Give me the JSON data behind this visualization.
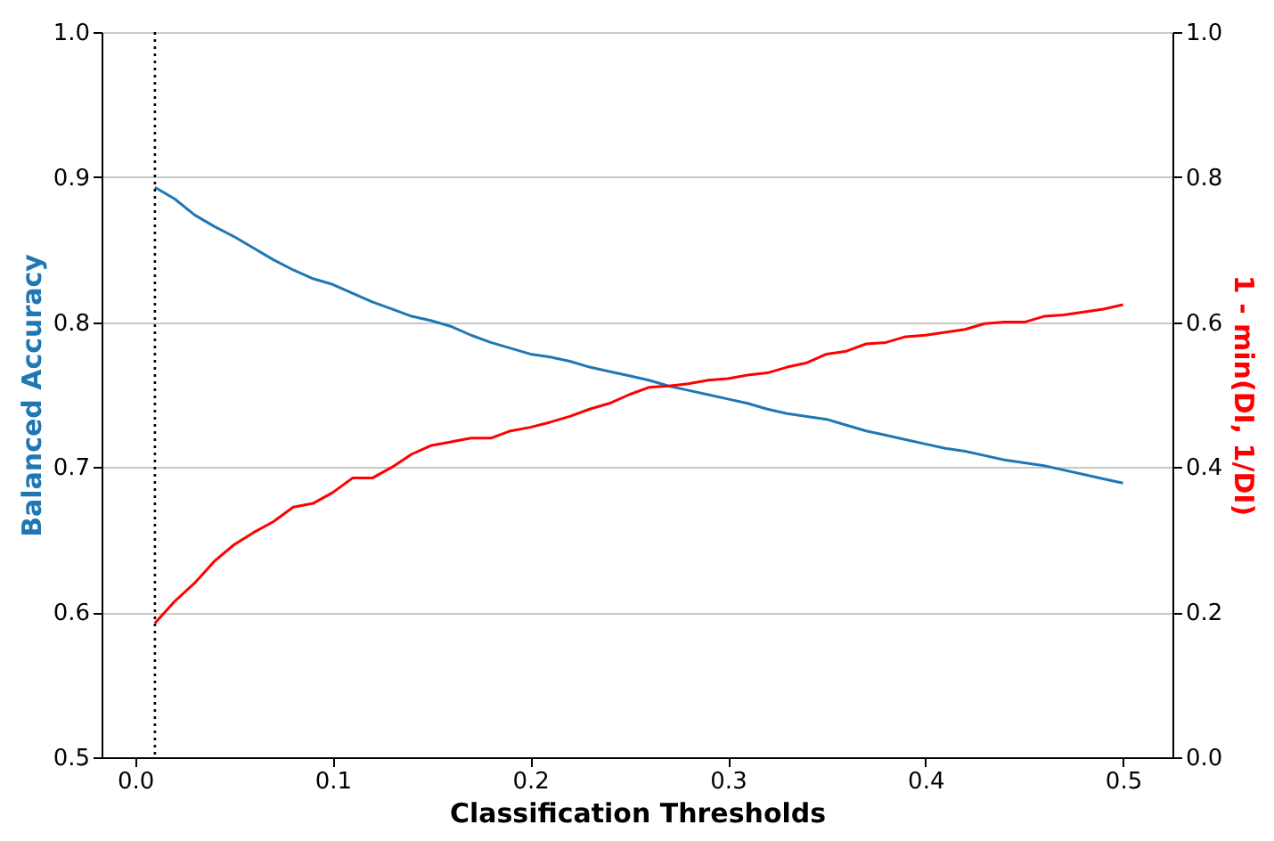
{
  "chart_data": {
    "type": "line",
    "xlabel": "Classification Thresholds",
    "ylabel": "Balanced Accuracy",
    "y2label": "1 - min(DI, 1/DI)",
    "x": [
      0.01,
      0.02,
      0.03,
      0.04,
      0.05,
      0.06,
      0.07,
      0.08,
      0.09,
      0.1,
      0.11,
      0.12,
      0.13,
      0.14,
      0.15,
      0.16,
      0.17,
      0.18,
      0.19,
      0.2,
      0.21,
      0.22,
      0.23,
      0.24,
      0.25,
      0.26,
      0.27,
      0.28,
      0.29,
      0.3,
      0.31,
      0.32,
      0.33,
      0.34,
      0.35,
      0.36,
      0.37,
      0.38,
      0.39,
      0.4,
      0.41,
      0.42,
      0.43,
      0.44,
      0.45,
      0.46,
      0.47,
      0.48,
      0.49,
      0.5
    ],
    "series": [
      {
        "color": "#1f77b4",
        "values": [
          0.893,
          0.885,
          0.874,
          0.866,
          0.859,
          0.851,
          0.843,
          0.836,
          0.83,
          0.826,
          0.82,
          0.814,
          0.809,
          0.804,
          0.801,
          0.797,
          0.791,
          0.786,
          0.782,
          0.778,
          0.776,
          0.773,
          0.769,
          0.766,
          0.763,
          0.76,
          0.756,
          0.753,
          0.75,
          0.747,
          0.744,
          0.74,
          0.737,
          0.735,
          0.733,
          0.729,
          0.725,
          0.722,
          0.719,
          0.716,
          0.713,
          0.711,
          0.708,
          0.705,
          0.703,
          0.701,
          0.698,
          0.695,
          0.692,
          0.689
        ]
      },
      {
        "color": "#ff0000",
        "axis": "y2",
        "values": [
          0.185,
          0.215,
          0.24,
          0.27,
          0.293,
          0.31,
          0.325,
          0.345,
          0.35,
          0.365,
          0.385,
          0.385,
          0.4,
          0.418,
          0.43,
          0.435,
          0.44,
          0.44,
          0.45,
          0.455,
          0.462,
          0.47,
          0.48,
          0.488,
          0.5,
          0.51,
          0.512,
          0.515,
          0.52,
          0.522,
          0.527,
          0.53,
          0.538,
          0.544,
          0.556,
          0.56,
          0.57,
          0.572,
          0.58,
          0.582,
          0.586,
          0.59,
          0.598,
          0.6,
          0.6,
          0.608,
          0.61,
          0.614,
          0.618,
          0.624
        ]
      }
    ],
    "xlim": [
      -0.017,
      0.525
    ],
    "xticks": [
      {
        "value": 0,
        "label": "0.0"
      },
      0.1,
      0.2,
      0.3,
      0.4,
      0.5
    ],
    "ylim": [
      0.5,
      1.0
    ],
    "yticks": [
      0.5,
      0.6,
      0.7,
      0.8,
      0.9,
      {
        "value": 1.0,
        "label": "1.0"
      }
    ],
    "y2lim": [
      0,
      1.0
    ],
    "y2ticks": [
      {
        "value": 0,
        "label": "0.0"
      },
      0.2,
      0.4,
      0.6,
      0.8,
      {
        "value": 1.0,
        "label": "1.0"
      }
    ],
    "ref_lines": [
      {
        "axis": "x",
        "value": 0.01,
        "color": "#000000",
        "line_style": "dotted"
      }
    ],
    "grid": "y",
    "marker": "none",
    "line_style": "solid"
  }
}
